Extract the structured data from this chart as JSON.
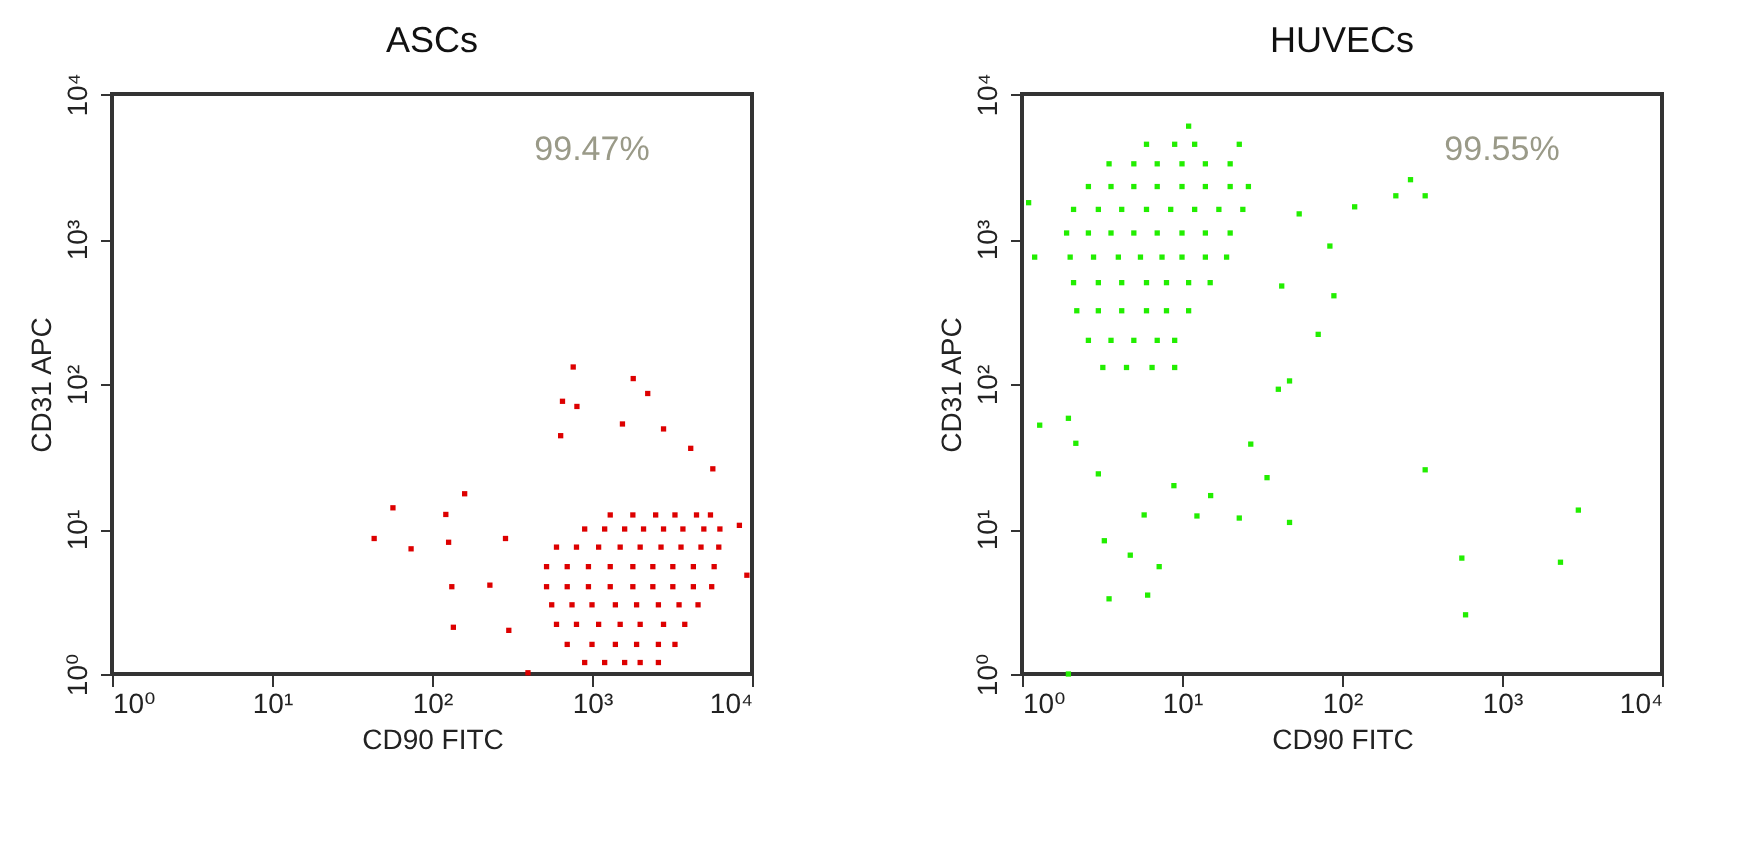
{
  "chart_data": [
    {
      "type": "scatter",
      "title": "ASCs",
      "xlabel": "CD90 FITC",
      "ylabel": "CD31 APC",
      "log": "xy",
      "marker": "square",
      "xlim": [
        1,
        10000
      ],
      "ylim": [
        1,
        10000
      ],
      "xticks": [
        {
          "value": 1,
          "label": "10⁰"
        },
        {
          "value": 10,
          "label": "10¹"
        },
        {
          "value": 100,
          "label": "10²"
        },
        {
          "value": 1000,
          "label": "10³"
        },
        {
          "value": 10000,
          "label": "10⁴"
        }
      ],
      "yticks": [
        {
          "value": 1,
          "label": "10⁰"
        },
        {
          "value": 10,
          "label": "10¹"
        },
        {
          "value": 100,
          "label": "10²"
        },
        {
          "value": 1000,
          "label": "10³"
        },
        {
          "value": 10000,
          "label": "10⁴"
        }
      ],
      "annotations": [
        "99.47%"
      ],
      "series": [
        {
          "color": "#dd0000",
          "x": [
            900,
            1200,
            1600,
            2000,
            2600,
            700,
            1000,
            1400,
            1900,
            2600,
            3300,
            600,
            800,
            1100,
            1500,
            2000,
            2800,
            3800,
            560,
            750,
            1000,
            1400,
            1900,
            2600,
            3500,
            4600,
            520,
            700,
            950,
            1300,
            1800,
            2400,
            3200,
            4300,
            5600,
            520,
            700,
            950,
            1300,
            1800,
            2400,
            3200,
            4300,
            5800,
            600,
            800,
            1100,
            1500,
            2000,
            2700,
            3600,
            4800,
            6200,
            900,
            1200,
            1600,
            2100,
            2800,
            3700,
            5000,
            6300,
            1300,
            1800,
            2500,
            3300,
            4500,
            5500,
            43.5,
            57,
            74,
            122,
            127,
            160,
            133,
            136,
            763,
            1810,
            2230,
            654,
            805,
            1550,
            637,
            2800,
            4140,
            5690,
            9290,
            8340,
            288,
            230,
            302,
            398
          ],
          "values": [
            1.2,
            1.2,
            1.2,
            1.2,
            1.2,
            1.6,
            1.6,
            1.6,
            1.6,
            1.6,
            1.6,
            2.2,
            2.2,
            2.2,
            2.2,
            2.2,
            2.2,
            2.2,
            3,
            3,
            3,
            3,
            3,
            3,
            3,
            3,
            4,
            4,
            4,
            4,
            4,
            4,
            4,
            4,
            4,
            5.5,
            5.5,
            5.5,
            5.5,
            5.5,
            5.5,
            5.5,
            5.5,
            5.5,
            7.5,
            7.5,
            7.5,
            7.5,
            7.5,
            7.5,
            7.5,
            7.5,
            7.5,
            10,
            10,
            10,
            10,
            10,
            10,
            10,
            10,
            12.5,
            12.5,
            12.5,
            12.5,
            12.5,
            12.5,
            8.6,
            14,
            7.3,
            12.6,
            8.1,
            17.5,
            4,
            2.1,
            131,
            109,
            86,
            76,
            70,
            53,
            44,
            49,
            36,
            26,
            4.8,
            10.6,
            8.6,
            4.1,
            2,
            1.02
          ]
        }
      ]
    },
    {
      "type": "scatter",
      "title": "HUVECs",
      "xlabel": "CD90 FITC",
      "ylabel": "CD31 APC",
      "log": "xy",
      "marker": "square",
      "xlim": [
        1,
        10000
      ],
      "ylim": [
        1,
        10000
      ],
      "xticks": [
        {
          "value": 1,
          "label": "10⁰"
        },
        {
          "value": 10,
          "label": "10¹"
        },
        {
          "value": 100,
          "label": "10²"
        },
        {
          "value": 1000,
          "label": "10³"
        },
        {
          "value": 10000,
          "label": "10⁴"
        }
      ],
      "yticks": [
        {
          "value": 1,
          "label": "10⁰"
        },
        {
          "value": 10,
          "label": "10¹"
        },
        {
          "value": 100,
          "label": "10²"
        },
        {
          "value": 1000,
          "label": "10³"
        },
        {
          "value": 10000,
          "label": "10⁴"
        }
      ],
      "annotations": [
        "99.55%"
      ],
      "series": [
        {
          "color": "#22ee00",
          "x": [
            6,
            9,
            12,
            3.5,
            5,
            7,
            10,
            14,
            20,
            2.6,
            3.6,
            5,
            7,
            10,
            14,
            20,
            26,
            2.1,
            3,
            4.2,
            6,
            8.5,
            12,
            17,
            24,
            1.9,
            2.6,
            3.6,
            5,
            7,
            10,
            14,
            20,
            2,
            2.8,
            4,
            5.5,
            7.5,
            10,
            14,
            19,
            2.1,
            3,
            4.2,
            6,
            8,
            11,
            15,
            2.2,
            3,
            4.2,
            6,
            8,
            11,
            2.6,
            3.6,
            5,
            7,
            9,
            3.2,
            4.5,
            6.5,
            9,
            1.1,
            1.2,
            1.29,
            1.95,
            2.17,
            3,
            3.27,
            3.5,
            4.75,
            6.1,
            7.2,
            5.8,
            8.9,
            12.4,
            15.1,
            22.8,
            26.9,
            34,
            47,
            47,
            71,
            89,
            84,
            120,
            217,
            331,
            268,
            331,
            561,
            592,
            2320,
            3000,
            1.95,
            11,
            22.8,
            54,
            42,
            40
          ],
          "values": [
            4500,
            4500,
            4500,
            3300,
            3300,
            3300,
            3300,
            3300,
            3300,
            2300,
            2300,
            2300,
            2300,
            2300,
            2300,
            2300,
            2300,
            1600,
            1600,
            1600,
            1600,
            1600,
            1600,
            1600,
            1600,
            1100,
            1100,
            1100,
            1100,
            1100,
            1100,
            1100,
            1100,
            750,
            750,
            750,
            750,
            750,
            750,
            750,
            750,
            500,
            500,
            500,
            500,
            500,
            500,
            500,
            320,
            320,
            320,
            320,
            320,
            320,
            200,
            200,
            200,
            200,
            200,
            130,
            130,
            130,
            130,
            1780,
            750,
            52,
            58,
            39,
            24,
            8.3,
            3.3,
            6.6,
            3.5,
            5.5,
            12.5,
            19.9,
            12.3,
            17,
            11.9,
            38.5,
            22.6,
            11.1,
            105,
            220,
            406,
            894,
            1667,
            1986,
            1986,
            2565,
            25.6,
            6.3,
            2.56,
            5.9,
            13.5,
            1,
            6000,
            4500,
            1490,
            474,
            92
          ]
        }
      ]
    }
  ]
}
